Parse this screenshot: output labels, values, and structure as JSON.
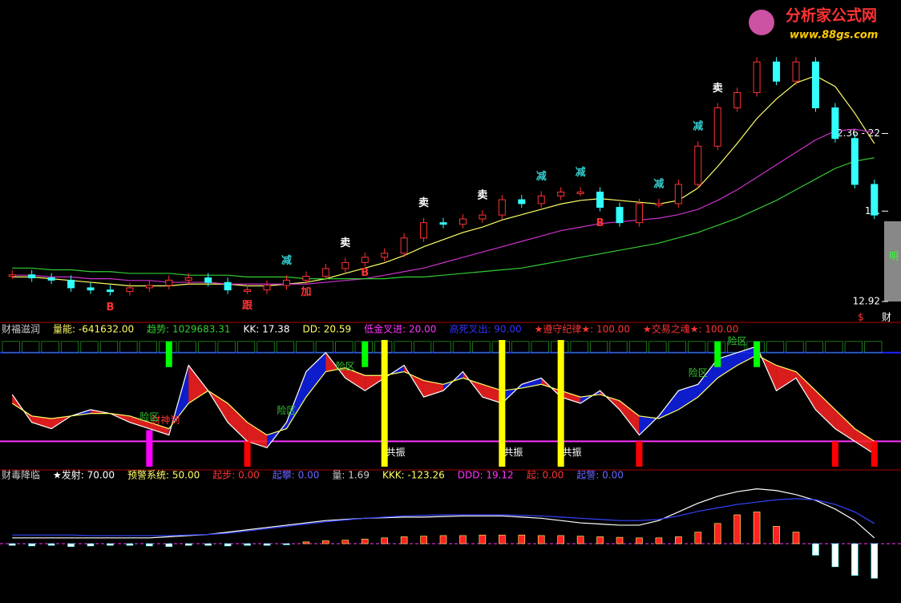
{
  "logo": {
    "name": "分析家公式网",
    "url": "www.88gs.com"
  },
  "side_labels": {
    "box": "明",
    "bottom": "财",
    "marker": "$"
  },
  "chart_data": [
    {
      "type": "candle",
      "categories": [
        null,
        null,
        null,
        null,
        null,
        null,
        null,
        null,
        null,
        null,
        null,
        null,
        null,
        null,
        null,
        null,
        null,
        null,
        null,
        null,
        null,
        null,
        null,
        null,
        null,
        null,
        null,
        null,
        null,
        null,
        null,
        null,
        null,
        null,
        null,
        null,
        null,
        null,
        null,
        null,
        null,
        null,
        null,
        null,
        null
      ],
      "ylim": [
        12.2,
        29.5
      ],
      "yticks": [
        12.92,
        {
          "value": 18,
          "label": "18."
        },
        {
          "value": 22.36,
          "label": "22.36 - 22"
        }
      ],
      "series": [
        {
          "color": "#ffffff",
          "values": [
            14.42,
            14.25,
            14.12,
            13.69,
            13.57,
            13.48,
            13.69,
            13.82,
            14.12,
            14.25,
            13.99,
            13.57,
            13.57,
            13.82,
            14.12,
            14.34,
            14.77,
            15.11,
            15.41,
            15.63,
            16.49,
            17.35,
            17.26,
            17.56,
            17.78,
            18.64,
            18.42,
            18.85,
            19.07,
            19.07,
            18.21,
            17.35,
            18.42,
            18.42,
            19.5,
            21.65,
            23.8,
            24.66,
            26.38,
            25.3,
            26.38,
            23.8,
            22.08,
            19.5,
            17.78
          ]
        },
        {
          "color": "#ffff66",
          "values": [
            14.3,
            14.3,
            14.2,
            14.1,
            14.0,
            13.9,
            13.8,
            13.8,
            13.8,
            13.9,
            13.9,
            13.9,
            13.8,
            13.8,
            13.9,
            14.0,
            14.2,
            14.5,
            14.8,
            15.1,
            15.5,
            16.0,
            16.4,
            16.8,
            17.1,
            17.5,
            17.8,
            18.1,
            18.4,
            18.6,
            18.7,
            18.6,
            18.5,
            18.4,
            18.6,
            19.3,
            20.5,
            21.8,
            23.2,
            24.3,
            25.2,
            25.6,
            25.0,
            23.5,
            21.8
          ]
        },
        {
          "color": "#cc33cc",
          "values": [
            14.4,
            14.4,
            14.3,
            14.3,
            14.2,
            14.2,
            14.1,
            14.1,
            14.0,
            14.0,
            14.0,
            13.9,
            13.9,
            13.9,
            13.9,
            13.9,
            14.0,
            14.1,
            14.2,
            14.4,
            14.6,
            14.8,
            15.1,
            15.4,
            15.7,
            16.0,
            16.3,
            16.6,
            16.9,
            17.1,
            17.3,
            17.4,
            17.5,
            17.6,
            17.8,
            18.1,
            18.6,
            19.2,
            19.9,
            20.6,
            21.3,
            22.0,
            22.5,
            22.6,
            22.4
          ]
        },
        {
          "color": "#33cc33",
          "values": [
            14.8,
            14.8,
            14.7,
            14.7,
            14.6,
            14.6,
            14.5,
            14.5,
            14.5,
            14.4,
            14.4,
            14.4,
            14.3,
            14.3,
            14.3,
            14.2,
            14.2,
            14.2,
            14.2,
            14.2,
            14.3,
            14.3,
            14.4,
            14.5,
            14.6,
            14.7,
            14.8,
            15.0,
            15.2,
            15.4,
            15.6,
            15.8,
            16.0,
            16.2,
            16.5,
            16.8,
            17.2,
            17.6,
            18.1,
            18.6,
            19.2,
            19.8,
            20.4,
            20.8,
            21.0
          ]
        }
      ],
      "annotations": [
        {
          "at": 5,
          "text": "B",
          "color": "#ff3333"
        },
        {
          "at": 12,
          "text": "跟",
          "color": "#ff3333"
        },
        {
          "at": 14,
          "text": "减",
          "color": "#33cccc"
        },
        {
          "at": 15,
          "text": "加",
          "color": "#ff3333"
        },
        {
          "at": 17,
          "text": "卖",
          "color": "#ffffff"
        },
        {
          "at": 18,
          "text": "B",
          "color": "#ff3333"
        },
        {
          "at": 21,
          "text": "卖",
          "color": "#ffffff"
        },
        {
          "at": 24,
          "text": "卖",
          "color": "#ffffff"
        },
        {
          "at": 27,
          "text": "减",
          "color": "#33cccc"
        },
        {
          "at": 29,
          "text": "减",
          "color": "#33cccc"
        },
        {
          "at": 30,
          "text": "B",
          "color": "#ff3333"
        },
        {
          "at": 33,
          "text": "减",
          "color": "#33cccc"
        },
        {
          "at": 35,
          "text": "减",
          "color": "#33cccc"
        },
        {
          "at": 36,
          "text": "卖",
          "color": "#ffffff"
        }
      ]
    },
    {
      "type": "line",
      "header": [
        {
          "text": "财福滋润",
          "color": "#cccccc"
        },
        {
          "text": "量能: -641632.00",
          "color": "#ffff66"
        },
        {
          "text": "趋势: 1029683.31",
          "color": "#33cc33"
        },
        {
          "text": "KK: 17.38",
          "color": "#ffffff"
        },
        {
          "text": "DD: 20.59",
          "color": "#ffff66"
        },
        {
          "text": "低金叉进: 20.00",
          "color": "#ff33ff"
        },
        {
          "text": "高死叉出: 90.00",
          "color": "#3333ff"
        },
        {
          "text": "★遵守纪律★: 100.00",
          "color": "#ff3333"
        },
        {
          "text": "★交易之魂★: 100.00",
          "color": "#ff3333"
        }
      ],
      "categories": [
        null,
        null,
        null,
        null,
        null,
        null,
        null,
        null,
        null,
        null,
        null,
        null,
        null,
        null,
        null,
        null,
        null,
        null,
        null,
        null,
        null,
        null,
        null,
        null,
        null,
        null,
        null,
        null,
        null,
        null,
        null,
        null,
        null,
        null,
        null,
        null,
        null,
        null,
        null,
        null,
        null,
        null,
        null,
        null,
        null
      ],
      "ylim": [
        0,
        100
      ],
      "levels": [
        {
          "value": 20,
          "color": "#ff33ff"
        },
        {
          "value": 90,
          "color": "#2222ff"
        }
      ],
      "series": [
        {
          "color": "#ffffff",
          "values": [
            57,
            35,
            30,
            40,
            45,
            42,
            35,
            30,
            25,
            80,
            60,
            35,
            20,
            15,
            35,
            75,
            90,
            70,
            60,
            70,
            80,
            55,
            60,
            75,
            55,
            50,
            65,
            70,
            55,
            50,
            60,
            45,
            25,
            40,
            60,
            65,
            85,
            90,
            95,
            60,
            70,
            45,
            30,
            20,
            10
          ]
        },
        {
          "color": "#ffff66",
          "values": [
            50,
            40,
            38,
            40,
            42,
            42,
            40,
            35,
            30,
            50,
            60,
            50,
            35,
            25,
            30,
            55,
            75,
            78,
            72,
            72,
            75,
            68,
            65,
            70,
            65,
            60,
            62,
            65,
            60,
            55,
            57,
            52,
            40,
            38,
            45,
            55,
            70,
            80,
            88,
            80,
            75,
            60,
            45,
            30,
            20
          ]
        }
      ],
      "signals": [
        {
          "at": 7,
          "color": "#ff00ff",
          "label": "财神到"
        },
        {
          "at": 8,
          "color": "#00ff00"
        },
        {
          "at": 12,
          "color": "#ff0000"
        },
        {
          "at": 18,
          "color": "#00ff00"
        },
        {
          "at": 19,
          "color": "#ffff00",
          "label": "共振"
        },
        {
          "at": 25,
          "color": "#ffff00",
          "label": "共振"
        },
        {
          "at": 28,
          "color": "#ffff00",
          "label": "共振"
        },
        {
          "at": 32,
          "color": "#ff0000"
        },
        {
          "at": 36,
          "color": "#00ff00"
        },
        {
          "at": 38,
          "color": "#00ff00"
        },
        {
          "at": 42,
          "color": "#ff0000"
        },
        {
          "at": 44,
          "color": "#ff0000"
        }
      ],
      "annotations": [
        {
          "at": 7,
          "text": "险区",
          "color": "#33cc33"
        },
        {
          "at": 14,
          "text": "险区",
          "color": "#33cc33"
        },
        {
          "at": 17,
          "text": "险区",
          "color": "#33cc33"
        },
        {
          "at": 35,
          "text": "险区",
          "color": "#33cc33"
        },
        {
          "at": 37,
          "text": "险区",
          "color": "#33cc33"
        }
      ]
    },
    {
      "type": "bar",
      "header": [
        {
          "text": "财毒降临",
          "color": "#cccccc"
        },
        {
          "text": "★发射: 70.00",
          "color": "#ffffff"
        },
        {
          "text": "预警系统: 50.00",
          "color": "#ffff66"
        },
        {
          "text": "起步: 0.00",
          "color": "#ff3333"
        },
        {
          "text": "起攀: 0.00",
          "color": "#6666ff"
        },
        {
          "text": "量: 1.69",
          "color": "#cccccc"
        },
        {
          "text": "KKK: -123.26",
          "color": "#ffff66"
        },
        {
          "text": "DDD: 19.12",
          "color": "#ff33ff"
        },
        {
          "text": "起: 0.00",
          "color": "#ff3333"
        },
        {
          "text": "起警: 0.00",
          "color": "#6666ff"
        }
      ],
      "categories": [
        null,
        null,
        null,
        null,
        null,
        null,
        null,
        null,
        null,
        null,
        null,
        null,
        null,
        null,
        null,
        null,
        null,
        null,
        null,
        null,
        null,
        null,
        null,
        null,
        null,
        null,
        null,
        null,
        null,
        null,
        null,
        null,
        null,
        null,
        null,
        null,
        null,
        null,
        null,
        null,
        null,
        null,
        null,
        null,
        null
      ],
      "ylim": [
        -100,
        100
      ],
      "values": [
        -3,
        -4,
        -3,
        -5,
        -4,
        -3,
        -3,
        -4,
        -5,
        -3,
        -3,
        -4,
        -3,
        -3,
        -2,
        3,
        5,
        6,
        8,
        10,
        12,
        13,
        14,
        14,
        15,
        15,
        15,
        14,
        14,
        13,
        12,
        11,
        10,
        10,
        12,
        20,
        35,
        50,
        55,
        30,
        20,
        -20,
        -40,
        -55,
        -60
      ],
      "colors": {
        "up": "#ff2222",
        "down": "#ffffff"
      },
      "series": [
        {
          "color": "#ffffff",
          "values": [
            10,
            10,
            10,
            10,
            10,
            10,
            10,
            10,
            12,
            14,
            16,
            20,
            24,
            28,
            32,
            36,
            40,
            42,
            44,
            45,
            46,
            46,
            47,
            48,
            48,
            48,
            46,
            44,
            40,
            36,
            34,
            32,
            32,
            40,
            55,
            70,
            82,
            90,
            95,
            92,
            85,
            75,
            60,
            40,
            10
          ]
        },
        {
          "color": "#3344ff",
          "values": [
            15,
            15,
            15,
            15,
            14,
            14,
            14,
            14,
            14,
            15,
            16,
            18,
            22,
            26,
            30,
            34,
            38,
            41,
            44,
            46,
            48,
            49,
            50,
            50,
            50,
            50,
            49,
            48,
            46,
            44,
            42,
            40,
            40,
            42,
            48,
            56,
            62,
            68,
            72,
            76,
            78,
            76,
            68,
            55,
            35
          ]
        }
      ]
    }
  ]
}
